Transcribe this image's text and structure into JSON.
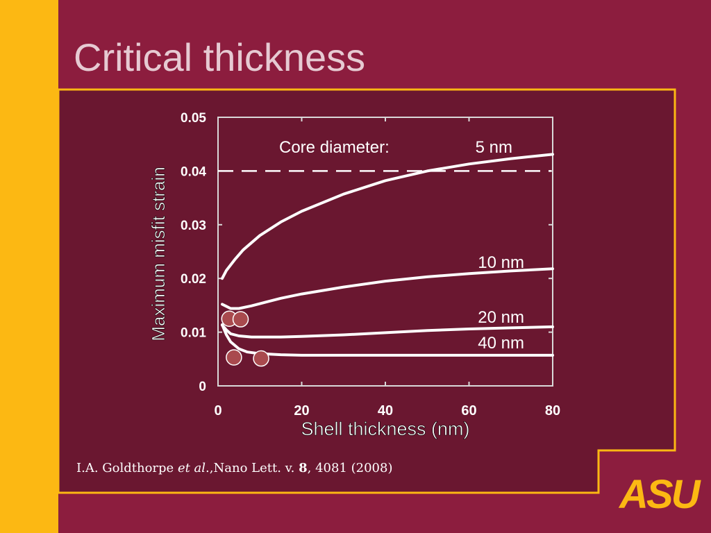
{
  "slide": {
    "title": "Critical thickness",
    "citation": {
      "authors": "I.A. Goldthorpe ",
      "et_al": "et al",
      "sep": ".,",
      "journal": "Nano Lett. v. ",
      "volume": "8",
      "pages_year": ", 4081 (2008)"
    },
    "logo_text": "ASU"
  },
  "colors": {
    "background": "#8c1d3e",
    "content_panel": "#6a1730",
    "gold": "#fcb813",
    "title": "#e6cad2",
    "curve": "#ffffff",
    "marker": "#a94a4e"
  },
  "chart_data": {
    "type": "line",
    "xlabel": "Shell thickness (nm)",
    "ylabel": "Maximum misfit strain",
    "xlim": [
      0,
      80
    ],
    "ylim": [
      0,
      0.05
    ],
    "xticks": [
      0,
      20,
      40,
      60,
      80
    ],
    "xtick_labels": [
      "0",
      "20",
      "40",
      "60",
      "80"
    ],
    "yticks": [
      0,
      0.01,
      0.02,
      0.03,
      0.04,
      0.05
    ],
    "ytick_labels": [
      "0",
      "0.01",
      "0.02",
      "0.03",
      "0.04",
      "0.05"
    ],
    "legend_title": "Core diameter:",
    "series": [
      {
        "name": "5 nm",
        "x": [
          1,
          2,
          4,
          6,
          10,
          15,
          20,
          30,
          40,
          50,
          60,
          70,
          80
        ],
        "y": [
          0.02,
          0.0215,
          0.0235,
          0.0253,
          0.028,
          0.0305,
          0.0325,
          0.0357,
          0.0382,
          0.04,
          0.0413,
          0.0423,
          0.0431
        ]
      },
      {
        "name": "10 nm",
        "x": [
          1,
          2,
          3,
          5,
          8,
          10,
          15,
          20,
          30,
          40,
          50,
          60,
          70,
          80
        ],
        "y": [
          0.0152,
          0.0148,
          0.0144,
          0.0144,
          0.0149,
          0.0153,
          0.0163,
          0.0171,
          0.0184,
          0.0195,
          0.0203,
          0.0209,
          0.0214,
          0.0218
        ]
      },
      {
        "name": "20 nm",
        "x": [
          1,
          2,
          3,
          5,
          8,
          10,
          15,
          20,
          30,
          40,
          50,
          60,
          70,
          80
        ],
        "y": [
          0.0113,
          0.0104,
          0.0097,
          0.0093,
          0.0091,
          0.0091,
          0.0091,
          0.0092,
          0.0095,
          0.0099,
          0.0103,
          0.0106,
          0.0108,
          0.011
        ]
      },
      {
        "name": "40 nm",
        "x": [
          1,
          2,
          3,
          5,
          7,
          10,
          15,
          20,
          30,
          40,
          50,
          60,
          70,
          80
        ],
        "y": [
          0.0114,
          0.0095,
          0.0082,
          0.0069,
          0.0063,
          0.006,
          0.0058,
          0.0057,
          0.0057,
          0.0057,
          0.0057,
          0.0057,
          0.0057,
          0.0057
        ]
      }
    ],
    "reference_line": {
      "y": 0.04,
      "style": "dashed"
    },
    "markers": [
      {
        "x": 2.7,
        "y": 0.0125
      },
      {
        "x": 5.4,
        "y": 0.0124
      },
      {
        "x": 3.8,
        "y": 0.0053
      },
      {
        "x": 10.3,
        "y": 0.0051
      }
    ],
    "grid": false
  }
}
